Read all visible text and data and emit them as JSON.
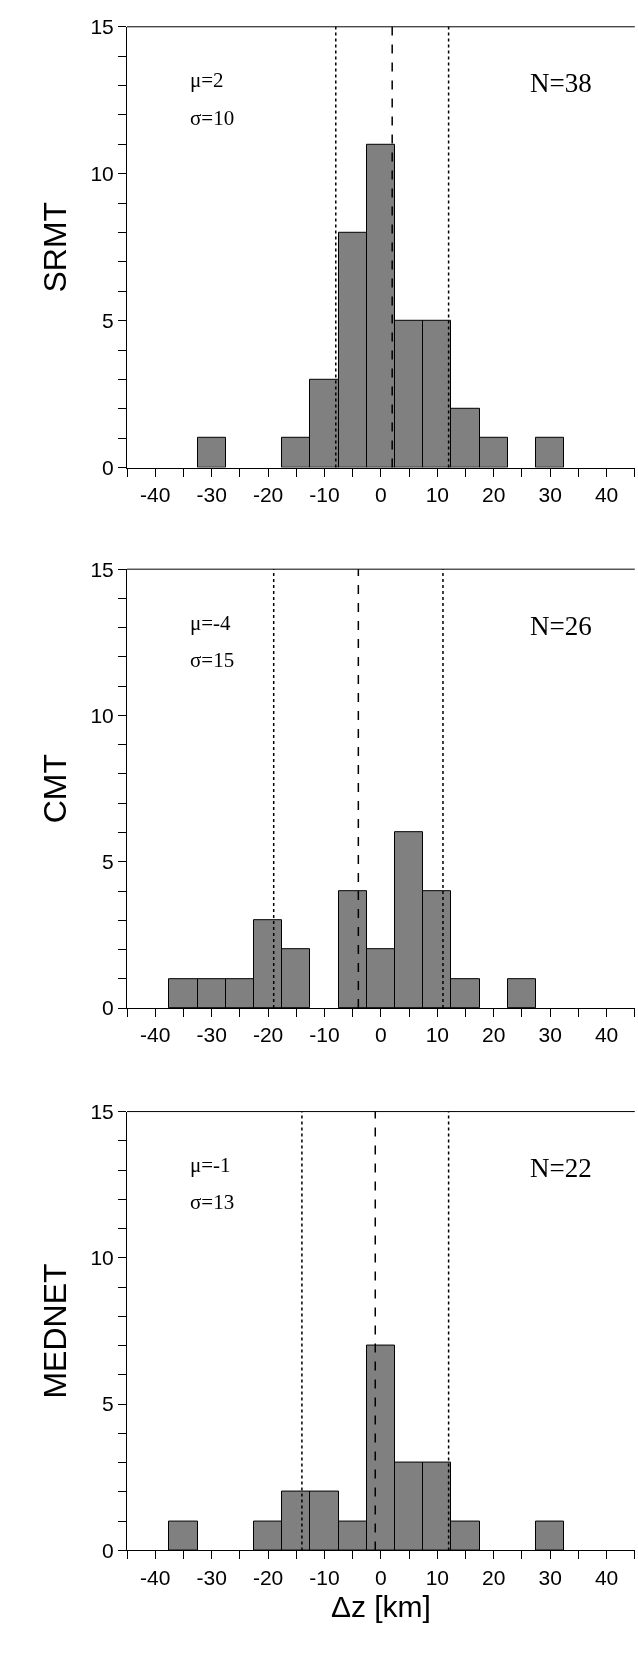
{
  "chart_data": [
    {
      "type": "histogram",
      "ylabel": "SRMT",
      "bins": [
        -32.5,
        -27.5,
        -22.5,
        -17.5,
        -12.5,
        -7.5,
        -2.5,
        2.5,
        7.5,
        12.5,
        17.5,
        22.5,
        27.5,
        32.5
      ],
      "values": [
        1,
        0,
        0,
        1,
        3,
        8,
        11,
        5,
        5,
        2,
        1,
        0,
        1
      ],
      "color": "#808080",
      "annotations": [
        "μ=2",
        "σ=10",
        "N=38"
      ],
      "ref_lines": [
        {
          "axis": "x",
          "value": 2,
          "line_style": "dashed"
        },
        {
          "axis": "x",
          "value": -8,
          "line_style": "dotted"
        },
        {
          "axis": "x",
          "value": 12,
          "line_style": "dotted"
        }
      ],
      "xlim": [
        -45,
        45
      ],
      "xticks": [
        {
          "value": -45,
          "label": null
        },
        -40,
        {
          "value": -35,
          "label": null
        },
        -30,
        {
          "value": -25,
          "label": null
        },
        -20,
        {
          "value": -15,
          "label": null
        },
        -10,
        {
          "value": -5,
          "label": null
        },
        0,
        {
          "value": 5,
          "label": null
        },
        10,
        {
          "value": 15,
          "label": null
        },
        20,
        {
          "value": 25,
          "label": null
        },
        30,
        {
          "value": 35,
          "label": null
        },
        40,
        {
          "value": 45,
          "label": null
        }
      ],
      "ylim": [
        0,
        15
      ],
      "yticks": [
        0,
        {
          "value": 1,
          "label": null
        },
        {
          "value": 2,
          "label": null
        },
        {
          "value": 3,
          "label": null
        },
        {
          "value": 4,
          "label": null
        },
        5,
        {
          "value": 6,
          "label": null
        },
        {
          "value": 7,
          "label": null
        },
        {
          "value": 8,
          "label": null
        },
        {
          "value": 9,
          "label": null
        },
        10,
        {
          "value": 11,
          "label": null
        },
        {
          "value": 12,
          "label": null
        },
        {
          "value": 13,
          "label": null
        },
        {
          "value": 14,
          "label": null
        },
        15
      ]
    },
    {
      "type": "histogram",
      "ylabel": "CMT",
      "bins": [
        -37.5,
        -32.5,
        -27.5,
        -22.5,
        -17.5,
        -12.5,
        -7.5,
        -2.5,
        2.5,
        7.5,
        12.5,
        17.5,
        22.5,
        27.5
      ],
      "values": [
        1,
        1,
        1,
        3,
        2,
        0,
        4,
        2,
        6,
        4,
        1,
        0,
        1
      ],
      "color": "#808080",
      "annotations": [
        "μ=-4",
        "σ=15",
        "N=26"
      ],
      "ref_lines": [
        {
          "axis": "x",
          "value": -4,
          "line_style": "dashed"
        },
        {
          "axis": "x",
          "value": -19,
          "line_style": "dotted"
        },
        {
          "axis": "x",
          "value": 11,
          "line_style": "dotted"
        }
      ],
      "xlim": [
        -45,
        45
      ],
      "xticks": [
        {
          "value": -45,
          "label": null
        },
        -40,
        {
          "value": -35,
          "label": null
        },
        -30,
        {
          "value": -25,
          "label": null
        },
        -20,
        {
          "value": -15,
          "label": null
        },
        -10,
        {
          "value": -5,
          "label": null
        },
        0,
        {
          "value": 5,
          "label": null
        },
        10,
        {
          "value": 15,
          "label": null
        },
        20,
        {
          "value": 25,
          "label": null
        },
        30,
        {
          "value": 35,
          "label": null
        },
        40,
        {
          "value": 45,
          "label": null
        }
      ],
      "ylim": [
        0,
        15
      ],
      "yticks": [
        0,
        {
          "value": 1,
          "label": null
        },
        {
          "value": 2,
          "label": null
        },
        {
          "value": 3,
          "label": null
        },
        {
          "value": 4,
          "label": null
        },
        5,
        {
          "value": 6,
          "label": null
        },
        {
          "value": 7,
          "label": null
        },
        {
          "value": 8,
          "label": null
        },
        {
          "value": 9,
          "label": null
        },
        10,
        {
          "value": 11,
          "label": null
        },
        {
          "value": 12,
          "label": null
        },
        {
          "value": 13,
          "label": null
        },
        {
          "value": 14,
          "label": null
        },
        15
      ]
    },
    {
      "type": "histogram",
      "ylabel": "MEDNET",
      "xlabel": "Δz [km]",
      "bins": [
        -37.5,
        -32.5,
        -27.5,
        -22.5,
        -17.5,
        -12.5,
        -7.5,
        -2.5,
        2.5,
        7.5,
        12.5,
        17.5,
        22.5,
        27.5,
        32.5
      ],
      "values": [
        1,
        0,
        0,
        1,
        2,
        2,
        1,
        7,
        3,
        3,
        1,
        0,
        0,
        1
      ],
      "color": "#808080",
      "annotations": [
        "μ=-1",
        "σ=13",
        "N=22"
      ],
      "ref_lines": [
        {
          "axis": "x",
          "value": -1,
          "line_style": "dashed"
        },
        {
          "axis": "x",
          "value": -14,
          "line_style": "dotted"
        },
        {
          "axis": "x",
          "value": 12,
          "line_style": "dotted"
        }
      ],
      "xlim": [
        -45,
        45
      ],
      "xticks": [
        {
          "value": -45,
          "label": null
        },
        -40,
        {
          "value": -35,
          "label": null
        },
        -30,
        {
          "value": -25,
          "label": null
        },
        -20,
        {
          "value": -15,
          "label": null
        },
        -10,
        {
          "value": -5,
          "label": null
        },
        0,
        {
          "value": 5,
          "label": null
        },
        10,
        {
          "value": 15,
          "label": null
        },
        20,
        {
          "value": 25,
          "label": null
        },
        30,
        {
          "value": 35,
          "label": null
        },
        40,
        {
          "value": 45,
          "label": null
        }
      ],
      "ylim": [
        0,
        15
      ],
      "yticks": [
        0,
        {
          "value": 1,
          "label": null
        },
        {
          "value": 2,
          "label": null
        },
        {
          "value": 3,
          "label": null
        },
        {
          "value": 4,
          "label": null
        },
        5,
        {
          "value": 6,
          "label": null
        },
        {
          "value": 7,
          "label": null
        },
        {
          "value": 8,
          "label": null
        },
        {
          "value": 9,
          "label": null
        },
        10,
        {
          "value": 11,
          "label": null
        },
        {
          "value": 12,
          "label": null
        },
        {
          "value": 13,
          "label": null
        },
        {
          "value": 14,
          "label": null
        },
        15
      ]
    }
  ]
}
